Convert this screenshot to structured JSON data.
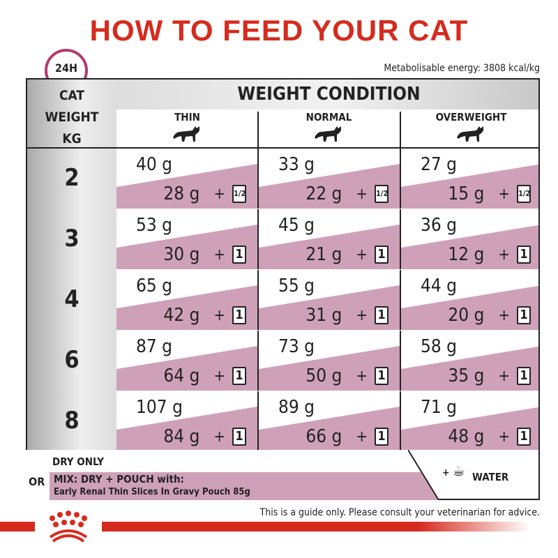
{
  "title": "HOW TO FEED YOUR CAT",
  "clock_label": "24H",
  "energy": "Metabolisable energy: 3808 kcal/kg",
  "table": {
    "row_header": "CAT WEIGHT KG",
    "group_header": "WEIGHT CONDITION",
    "columns": [
      "THIN",
      "NORMAL",
      "OVERWEIGHT"
    ],
    "rows": [
      {
        "weight": "2",
        "cells": [
          {
            "dry": "40 g",
            "mix": "28 g",
            "pouch": "1/2"
          },
          {
            "dry": "33 g",
            "mix": "22 g",
            "pouch": "1/2"
          },
          {
            "dry": "27 g",
            "mix": "15 g",
            "pouch": "1/2"
          }
        ]
      },
      {
        "weight": "3",
        "cells": [
          {
            "dry": "53 g",
            "mix": "30 g",
            "pouch": "1"
          },
          {
            "dry": "45 g",
            "mix": "21 g",
            "pouch": "1"
          },
          {
            "dry": "36 g",
            "mix": "12 g",
            "pouch": "1"
          }
        ]
      },
      {
        "weight": "4",
        "cells": [
          {
            "dry": "65 g",
            "mix": "42 g",
            "pouch": "1"
          },
          {
            "dry": "55 g",
            "mix": "31 g",
            "pouch": "1"
          },
          {
            "dry": "44 g",
            "mix": "20 g",
            "pouch": "1"
          }
        ]
      },
      {
        "weight": "6",
        "cells": [
          {
            "dry": "87 g",
            "mix": "64 g",
            "pouch": "1"
          },
          {
            "dry": "73 g",
            "mix": "50 g",
            "pouch": "1"
          },
          {
            "dry": "58 g",
            "mix": "35 g",
            "pouch": "1"
          }
        ]
      },
      {
        "weight": "8",
        "cells": [
          {
            "dry": "107 g",
            "mix": "84 g",
            "pouch": "1"
          },
          {
            "dry": "89 g",
            "mix": "66 g",
            "pouch": "1"
          },
          {
            "dry": "71 g",
            "mix": "48 g",
            "pouch": "1"
          }
        ]
      }
    ]
  },
  "legend": {
    "dry_only": "DRY ONLY",
    "or": "OR",
    "mix": "MIX: DRY + POUCH with:",
    "product": "Early Renal Thin Slices In Gravy Pouch 85g",
    "plus": "+",
    "water": "WATER"
  },
  "disclaimer": "This is a guide only. Please consult your veterinarian for advice.",
  "colors": {
    "brand_red": "#d52b1e",
    "pink": "#cfa1b9",
    "clock": "#b23a6e"
  },
  "icons": [
    "clock-icon",
    "cat-silhouette-icon",
    "pouch-icon",
    "water-tap-icon",
    "royal-canin-crown-logo"
  ]
}
